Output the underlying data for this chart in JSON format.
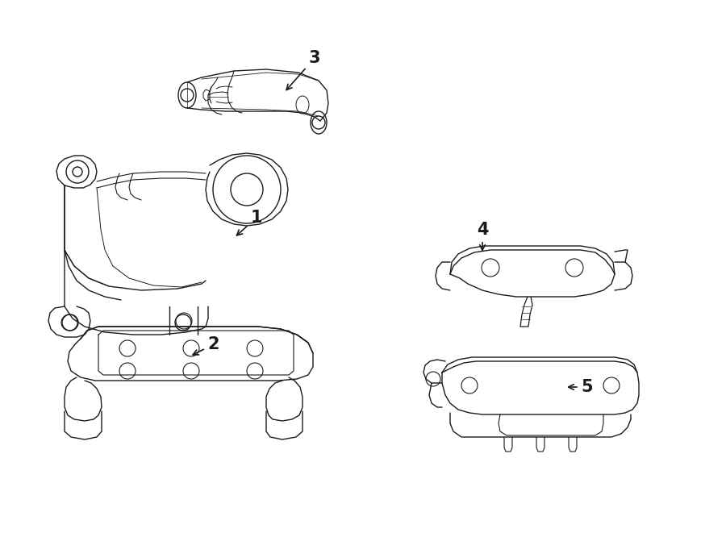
{
  "bg_color": "#ffffff",
  "line_color": "#1a1a1a",
  "line_width": 1.0,
  "fig_width": 9.0,
  "fig_height": 6.61,
  "dpi": 100
}
